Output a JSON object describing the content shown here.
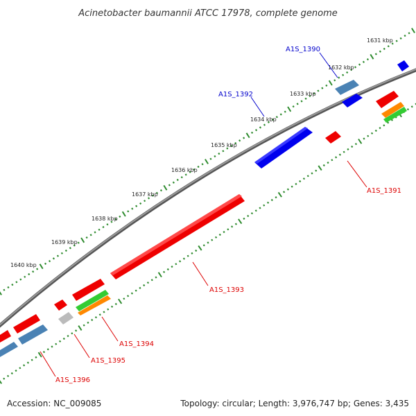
{
  "header": {
    "title": "Acinetobacter baumannii ATCC 17978, complete genome"
  },
  "ruler": {
    "kbp_labels": [
      "1631 kbp",
      "1632 kbp",
      "1633 kbp",
      "1634 kbp",
      "1635 kbp",
      "1636 kbp",
      "1637 kbp",
      "1638 kbp",
      "1639 kbp",
      "1640 kbp"
    ]
  },
  "genes": {
    "a1s_1390": "A1S_1390",
    "a1s_1391": "A1S_1391",
    "a1s_1392": "A1S_1392",
    "a1s_1393": "A1S_1393",
    "a1s_1394": "A1S_1394",
    "a1s_1395": "A1S_1395",
    "a1s_1396": "A1S_1396"
  },
  "footer": {
    "accession": "Accession: NC_009085",
    "topology": "Topology: circular; Length: 3,976,747 bp; Genes: 3,435"
  },
  "colors": {
    "forward_cds": "#0000ff",
    "reverse_cds": "#ff0000",
    "forward_gene": "#4a82b4",
    "label_forward": "#0000cc",
    "label_reverse": "#dd0000",
    "backbone": "#777777",
    "ticks": "#2e8b2e"
  }
}
